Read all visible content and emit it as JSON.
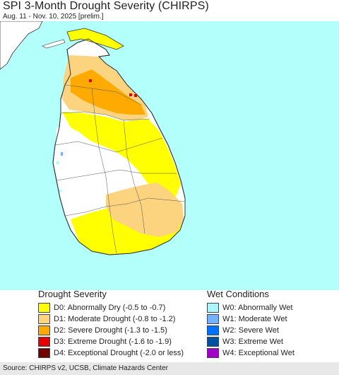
{
  "header": {
    "title": "SPI 3-Month Drought Severity (CHIRPS)",
    "subtitle": "Aug. 11 - Nov. 10, 2025 [prelim.]"
  },
  "map": {
    "sea_color": "#b3fffb",
    "land_color": "#ffffff",
    "d0_color": "#ffff00",
    "d1_color": "#fcd37f",
    "d2_color": "#ffaa00",
    "d3_color": "#e60000"
  },
  "legend": {
    "drought_title": "Drought Severity",
    "wet_title": "Wet Conditions",
    "drought_items": [
      {
        "label": "D0: Abnormally Dry (-0.5 to -0.7)",
        "color": "#ffff00"
      },
      {
        "label": "D1: Moderate Drought (-0.8 to -1.2)",
        "color": "#fcd37f"
      },
      {
        "label": "D2: Severe Drought (-1.3 to -1.5)",
        "color": "#ffaa00"
      },
      {
        "label": "D3: Extreme Drought (-1.6 to -1.9)",
        "color": "#e60000"
      },
      {
        "label": "D4: Exceptional Drought (-2.0 or less)",
        "color": "#730000"
      }
    ],
    "wet_items": [
      {
        "label": "W0: Abnormally Wet",
        "color": "#aaf5ff"
      },
      {
        "label": "W1: Moderate Wet",
        "color": "#73b2ff"
      },
      {
        "label": "W2: Severe Wet",
        "color": "#0070ff"
      },
      {
        "label": "W3: Extreme Wet",
        "color": "#0050a0"
      },
      {
        "label": "W4: Exceptional Wet",
        "color": "#a000c8"
      }
    ]
  },
  "footer": {
    "source": "Source: CHIRPS v2, UCSB, Climate Hazards Center"
  }
}
